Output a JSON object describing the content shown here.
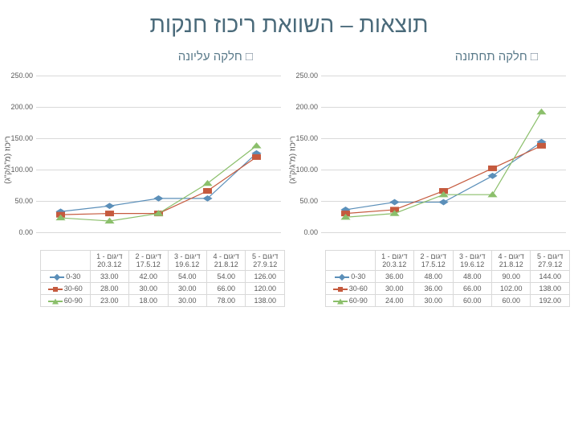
{
  "page_title": "תוצאות – השוואת ריכוז חנקות",
  "ylabel": "ריכוז (מ\"ג/ק\"ג)",
  "ylim": [
    0,
    250
  ],
  "ytick_step": 50,
  "yticks": [
    0,
    50,
    100,
    150,
    200,
    250
  ],
  "ytick_labels": [
    "0.00",
    "50.00",
    "100.00",
    "150.00",
    "200.00",
    "250.00"
  ],
  "categories": [
    "דיגום - 1\n20.3.12",
    "דיגום - 2\n17.5.12",
    "דיגום - 3\n19.6.12",
    "דיגום - 4\n21.8.12",
    "דיגום - 5\n27.9.12"
  ],
  "series_colors": {
    "s0": "#5b8fb9",
    "s1": "#c55a3e",
    "s2": "#8bbf6b"
  },
  "marker_shapes": {
    "s0": "diamond",
    "s1": "square",
    "s2": "triangle"
  },
  "line_width": 2.5,
  "background_color": "#ffffff",
  "grid_color": "#d9d9d9",
  "charts": [
    {
      "title": "חלקה עליונה",
      "series": [
        {
          "name": "0-30",
          "values": [
            33.0,
            42.0,
            54.0,
            54.0,
            126.0
          ],
          "color_key": "s0"
        },
        {
          "name": "30-60",
          "values": [
            28.0,
            30.0,
            30.0,
            66.0,
            120.0
          ],
          "color_key": "s1"
        },
        {
          "name": "60-90",
          "values": [
            23.0,
            18.0,
            30.0,
            78.0,
            138.0
          ],
          "color_key": "s2"
        }
      ]
    },
    {
      "title": "חלקה תחתונה",
      "series": [
        {
          "name": "0-30",
          "values": [
            36.0,
            48.0,
            48.0,
            90.0,
            144.0
          ],
          "color_key": "s0"
        },
        {
          "name": "30-60",
          "values": [
            30.0,
            36.0,
            66.0,
            102.0,
            138.0
          ],
          "color_key": "s1"
        },
        {
          "name": "60-90",
          "values": [
            24.0,
            30.0,
            60.0,
            60.0,
            192.0
          ],
          "color_key": "s2"
        }
      ]
    }
  ]
}
